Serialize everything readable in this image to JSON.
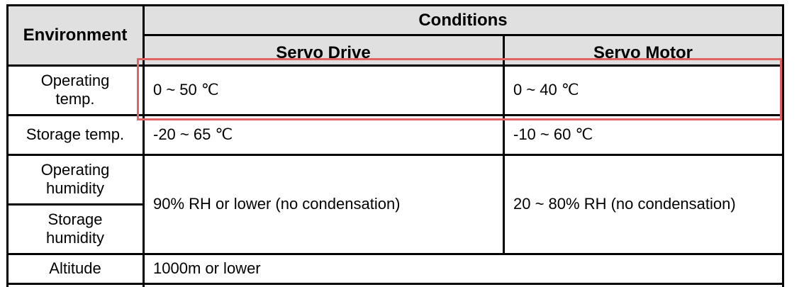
{
  "header": {
    "environment": "Environment",
    "conditions": "Conditions",
    "servo_drive": "Servo Drive",
    "servo_motor": "Servo Motor"
  },
  "rows": [
    {
      "label": "Operating temp.",
      "drive": "0 ~ 50 ℃",
      "motor": "0 ~ 40 ℃"
    },
    {
      "label": "Storage temp.",
      "drive": "-20 ~ 65 ℃",
      "motor": "-10 ~ 60 ℃"
    },
    {
      "label": "Operating humidity"
    },
    {
      "label": "Storage humidity"
    },
    {
      "label": "Altitude",
      "value": "1000m or lower"
    }
  ],
  "humidity": {
    "drive": "90% RH or lower (no condensation)",
    "motor": "20 ~ 80% RH (no condensation)"
  },
  "highlight_color": "#e06464"
}
